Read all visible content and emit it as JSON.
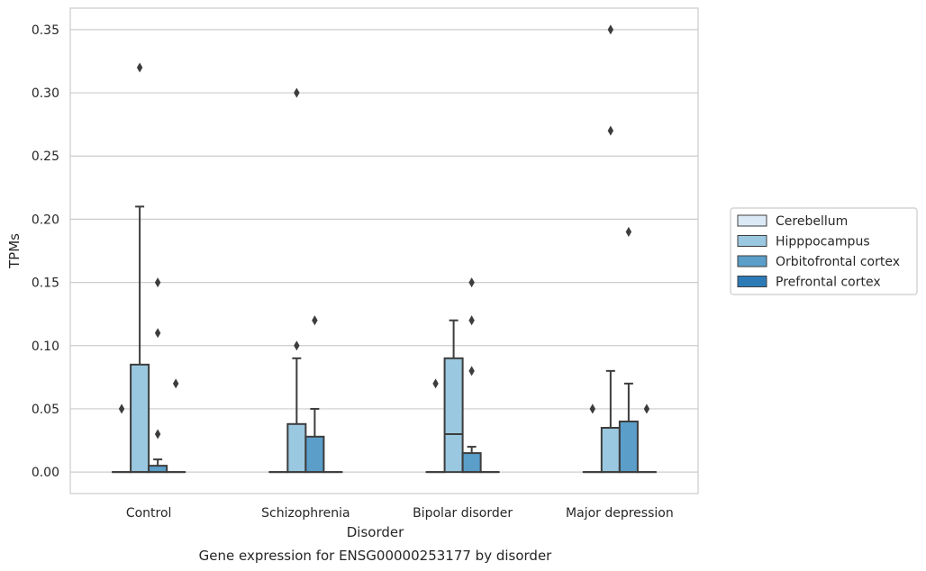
{
  "chart_data": {
    "type": "box",
    "title": "Gene expression for ENSG00000253177 by disorder",
    "xlabel": "Disorder",
    "ylabel": "TPMs",
    "ylim": [
      -0.017,
      0.367
    ],
    "yticks": [
      "0.00",
      "0.05",
      "0.10",
      "0.15",
      "0.20",
      "0.25",
      "0.30",
      "0.35"
    ],
    "categories": [
      "Control",
      "Schizophrenia",
      "Bipolar disorder",
      "Major depression"
    ],
    "grid": "horizontal",
    "legend_position": "right",
    "series": [
      {
        "name": "Cerebellum",
        "color": "#dbe9f6",
        "boxes": [
          {
            "q1": 0,
            "median": 0,
            "q3": 0,
            "whislo": 0,
            "whishi": 0,
            "fliers": [
              0.05
            ]
          },
          {
            "q1": 0,
            "median": 0,
            "q3": 0,
            "whislo": 0,
            "whishi": 0,
            "fliers": []
          },
          {
            "q1": 0,
            "median": 0,
            "q3": 0,
            "whislo": 0,
            "whishi": 0,
            "fliers": [
              0.07
            ]
          },
          {
            "q1": 0,
            "median": 0,
            "q3": 0,
            "whislo": 0,
            "whishi": 0,
            "fliers": [
              0.05
            ]
          }
        ]
      },
      {
        "name": "Hipppocampus",
        "color": "#9ac8e0",
        "boxes": [
          {
            "q1": 0,
            "median": 0,
            "q3": 0.085,
            "whislo": 0,
            "whishi": 0.21,
            "fliers": [
              0.32
            ]
          },
          {
            "q1": 0,
            "median": 0,
            "q3": 0.038,
            "whislo": 0,
            "whishi": 0.09,
            "fliers": [
              0.1,
              0.3
            ]
          },
          {
            "q1": 0,
            "median": 0.03,
            "q3": 0.09,
            "whislo": 0,
            "whishi": 0.12,
            "fliers": []
          },
          {
            "q1": 0,
            "median": 0,
            "q3": 0.035,
            "whislo": 0,
            "whishi": 0.08,
            "fliers": [
              0.27,
              0.35
            ]
          }
        ]
      },
      {
        "name": "Orbitofrontal cortex",
        "color": "#5a9ec9",
        "boxes": [
          {
            "q1": 0,
            "median": 0,
            "q3": 0.005,
            "whislo": 0,
            "whishi": 0.01,
            "fliers": [
              0.03,
              0.11,
              0.15
            ]
          },
          {
            "q1": 0,
            "median": 0,
            "q3": 0.028,
            "whislo": 0,
            "whishi": 0.05,
            "fliers": [
              0.12
            ]
          },
          {
            "q1": 0,
            "median": 0,
            "q3": 0.015,
            "whislo": 0,
            "whishi": 0.02,
            "fliers": [
              0.08,
              0.12,
              0.15
            ]
          },
          {
            "q1": 0,
            "median": 0,
            "q3": 0.04,
            "whislo": 0,
            "whishi": 0.07,
            "fliers": [
              0.19
            ]
          }
        ]
      },
      {
        "name": "Prefrontal cortex",
        "color": "#2c7bb6",
        "boxes": [
          {
            "q1": 0,
            "median": 0,
            "q3": 0,
            "whislo": 0,
            "whishi": 0,
            "fliers": [
              0.07
            ]
          },
          {
            "q1": 0,
            "median": 0,
            "q3": 0,
            "whislo": 0,
            "whishi": 0,
            "fliers": []
          },
          {
            "q1": 0,
            "median": 0,
            "q3": 0,
            "whislo": 0,
            "whishi": 0,
            "fliers": []
          },
          {
            "q1": 0,
            "median": 0,
            "q3": 0,
            "whislo": 0,
            "whishi": 0,
            "fliers": [
              0.05
            ]
          }
        ]
      }
    ]
  }
}
